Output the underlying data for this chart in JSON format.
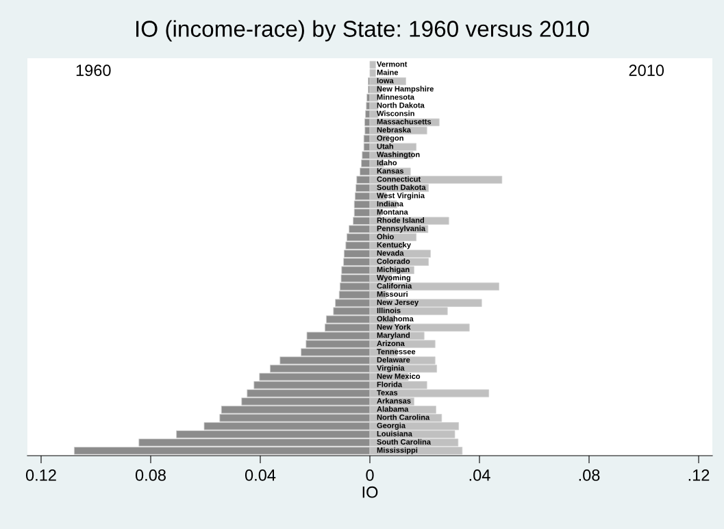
{
  "chart_data": {
    "type": "bar",
    "orientation": "horizontal",
    "title": "IO (income-race) by State: 1960 versus 2010",
    "xlabel": "IO",
    "categories": [
      "Vermont",
      "Maine",
      "Iowa",
      "New Hampshire",
      "Minnesota",
      "North Dakota",
      "Wisconsin",
      "Massachusetts",
      "Nebraska",
      "Oregon",
      "Utah",
      "Washington",
      "Idaho",
      "Kansas",
      "Connecticut",
      "South Dakota",
      "West Virginia",
      "Indiana",
      "Montana",
      "Rhode Island",
      "Pennsylvania",
      "Ohio",
      "Kentucky",
      "Nevada",
      "Colorado",
      "Michigan",
      "Wyoming",
      "California",
      "Missouri",
      "New Jersey",
      "Illinois",
      "Oklahoma",
      "New York",
      "Maryland",
      "Arizona",
      "Tennessee",
      "Delaware",
      "Virginia",
      "New Mexico",
      "Florida",
      "Texas",
      "Arkansas",
      "Alabama",
      "North Carolina",
      "Georgia",
      "Louisiana",
      "South Carolina",
      "Mississippi"
    ],
    "series": [
      {
        "name": "1960",
        "color": "#8c8c8c",
        "values": [
          null,
          null,
          -0.0006,
          -0.0006,
          -0.0011,
          -0.0013,
          -0.0016,
          -0.0019,
          -0.0018,
          -0.0022,
          -0.0022,
          -0.0028,
          -0.0031,
          -0.0036,
          -0.0048,
          -0.0051,
          -0.0054,
          -0.0057,
          -0.0057,
          -0.0061,
          -0.0076,
          -0.0084,
          -0.0088,
          -0.0094,
          -0.0096,
          -0.0103,
          -0.0105,
          -0.0109,
          -0.0112,
          -0.0126,
          -0.0133,
          -0.0159,
          -0.0164,
          -0.023,
          -0.0233,
          -0.0251,
          -0.0328,
          -0.0364,
          -0.0403,
          -0.0423,
          -0.0448,
          -0.0468,
          -0.0542,
          -0.0548,
          -0.0605,
          -0.0706,
          -0.0843,
          -0.1079
        ]
      },
      {
        "name": "2010",
        "color": "#c0c0c0",
        "values": [
          0.0021,
          0.0021,
          0.0131,
          0.004,
          0.003,
          0.003,
          0.003,
          0.0253,
          0.0208,
          0.007,
          0.0169,
          0.0157,
          0.005,
          0.0148,
          0.0482,
          0.0214,
          0.006,
          0.0098,
          0.004,
          0.0288,
          0.0212,
          0.0169,
          0.0123,
          0.0221,
          0.0214,
          0.0161,
          0.008,
          0.0471,
          0.006,
          0.0408,
          0.0283,
          0.009,
          0.0363,
          0.0198,
          0.0238,
          0.01,
          0.0238,
          0.0244,
          0.014,
          0.0208,
          0.0434,
          0.0161,
          0.0241,
          0.0262,
          0.0324,
          0.031,
          0.0322,
          0.0337
        ]
      }
    ],
    "xlim": [
      -0.125,
      0.125
    ],
    "xticks": [
      {
        "value": -0.12,
        "label": "0.12"
      },
      {
        "value": -0.08,
        "label": "0.08"
      },
      {
        "value": -0.04,
        "label": "0.04"
      },
      0,
      {
        "value": 0.04,
        "label": ".04"
      },
      {
        "value": 0.08,
        "label": ".08"
      },
      {
        "value": 0.12,
        "label": ".12"
      }
    ],
    "stacked": true,
    "tick_labels": "x",
    "grid": false,
    "legend": false
  }
}
